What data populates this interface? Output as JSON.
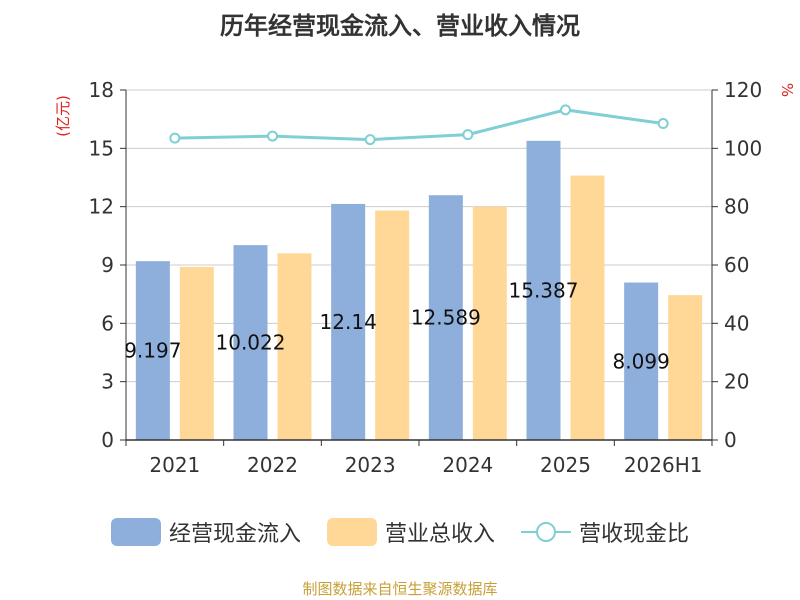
{
  "title": "历年经营现金流入、营业收入情况",
  "left_axis_unit": "(亿元)",
  "right_axis_unit": "%",
  "footer": "制图数据来自恒生聚源数据库",
  "colors": {
    "cash_inflow": "#8eaedb",
    "revenue": "#ffd897",
    "ratio": "#7fcfd4",
    "unit_text": "#e0201a"
  },
  "chart_data": {
    "type": "bar",
    "categories": [
      "2021",
      "2022",
      "2023",
      "2024",
      "2025",
      "2026H1"
    ],
    "series": [
      {
        "name": "经营现金流入",
        "type": "bar",
        "axis": "left",
        "values": [
          9.197,
          10.022,
          12.14,
          12.589,
          15.387,
          8.099
        ],
        "labels": [
          "9.197",
          "10.022",
          "12.14",
          "12.589",
          "15.387",
          "8.099"
        ]
      },
      {
        "name": "营业总收入",
        "type": "bar",
        "axis": "left",
        "values": [
          8.9,
          9.6,
          11.8,
          12.0,
          13.6,
          7.45
        ]
      },
      {
        "name": "营收现金比",
        "type": "line",
        "axis": "right",
        "values": [
          103.5,
          104.2,
          103.0,
          104.7,
          113.2,
          108.5
        ]
      }
    ],
    "ylim_left": [
      0,
      18
    ],
    "yticks_left": [
      0,
      3,
      6,
      9,
      12,
      15,
      18
    ],
    "ylim_right": [
      0,
      120
    ],
    "yticks_right": [
      0,
      20,
      40,
      60,
      80,
      100,
      120
    ],
    "grid": true,
    "legend_position": "bottom"
  }
}
